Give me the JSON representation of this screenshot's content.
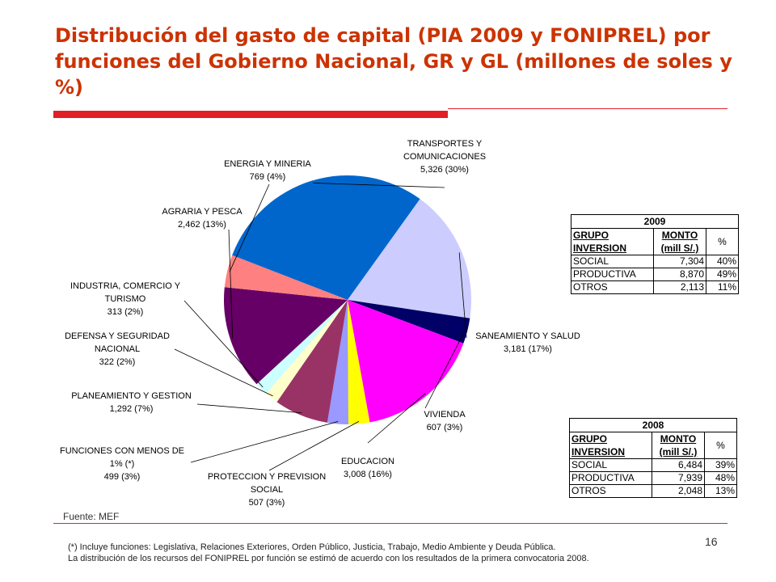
{
  "title": "Distribución del gasto de capital (PIA 2009 y FONIPREL) por funciones del Gobierno Nacional, GR y GL (millones de soles y %)",
  "source": "Fuente: MEF",
  "page_number": "16",
  "footnote": {
    "line1": "(*) Incluye funciones: Legislativa, Relaciones Exteriores, Orden Público, Justicia, Trabajo, Medio Ambiente y Deuda Pública.",
    "line2": "La distribución de los recursos del FONIPREL por función se estimó de acuerdo con los resultados de la primera convocatoria 2008."
  },
  "chart_data": {
    "type": "pie",
    "title": "",
    "slices": [
      {
        "key": "transportes",
        "label_lines": [
          "TRANSPORTES Y",
          "COMUNICACIONES",
          "5,326 (30%)"
        ],
        "value": 5326,
        "color": "#0066cc"
      },
      {
        "key": "saneamiento",
        "label_lines": [
          "SANEAMIENTO Y SALUD",
          "3,181 (17%)"
        ],
        "value": 3181,
        "color": "#ccccff"
      },
      {
        "key": "vivienda",
        "label_lines": [
          "VIVIENDA",
          "607 (3%)"
        ],
        "value": 607,
        "color": "#000066"
      },
      {
        "key": "educacion",
        "label_lines": [
          "EDUCACION",
          "3,008 (16%)"
        ],
        "value": 3008,
        "color": "#ff00ff"
      },
      {
        "key": "proteccion",
        "label_lines": [
          "PROTECCION Y PREVISION",
          "SOCIAL",
          "507 (3%)"
        ],
        "value": 507,
        "color": "#ffff00"
      },
      {
        "key": "menos1",
        "label_lines": [
          "FUNCIONES CON MENOS DE",
          "1% (*)",
          "499 (3%)"
        ],
        "value": 499,
        "color": "#9999ff"
      },
      {
        "key": "planeamiento",
        "label_lines": [
          "PLANEAMIENTO Y GESTION",
          "1,292 (7%)"
        ],
        "value": 1292,
        "color": "#993366"
      },
      {
        "key": "defensa",
        "label_lines": [
          "DEFENSA Y SEGURIDAD",
          "NACIONAL",
          "322 (2%)"
        ],
        "value": 322,
        "color": "#ffffcc"
      },
      {
        "key": "industria",
        "label_lines": [
          "INDUSTRIA, COMERCIO Y",
          "TURISMO",
          "313 (2%)"
        ],
        "value": 313,
        "color": "#ccffff"
      },
      {
        "key": "agraria",
        "label_lines": [
          "AGRARIA Y PESCA",
          "2,462 (13%)"
        ],
        "value": 2462,
        "color": "#660066"
      },
      {
        "key": "energia",
        "label_lines": [
          "ENERGIA Y MINERIA",
          "769 (4%)"
        ],
        "value": 769,
        "color": "#ff8080"
      }
    ]
  },
  "tables": [
    {
      "year": "2009",
      "headers": {
        "grupo": [
          "GRUPO",
          "INVERSION"
        ],
        "monto": [
          "MONTO",
          "(mill S/.)"
        ],
        "pct": "%"
      },
      "rows": [
        {
          "grupo": "SOCIAL",
          "monto": "7,304",
          "pct": "40%"
        },
        {
          "grupo": "PRODUCTIVA",
          "monto": "8,870",
          "pct": "49%"
        },
        {
          "grupo": "OTROS",
          "monto": "2,113",
          "pct": "11%"
        }
      ]
    },
    {
      "year": "2008",
      "headers": {
        "grupo": [
          "GRUPO",
          "INVERSION"
        ],
        "monto": [
          "MONTO",
          "(mill S/.)"
        ],
        "pct": "%"
      },
      "rows": [
        {
          "grupo": "SOCIAL",
          "monto": "6,484",
          "pct": "39%"
        },
        {
          "grupo": "PRODUCTIVA",
          "monto": "7,939",
          "pct": "48%"
        },
        {
          "grupo": "OTROS",
          "monto": "2,048",
          "pct": "13%"
        }
      ]
    }
  ]
}
